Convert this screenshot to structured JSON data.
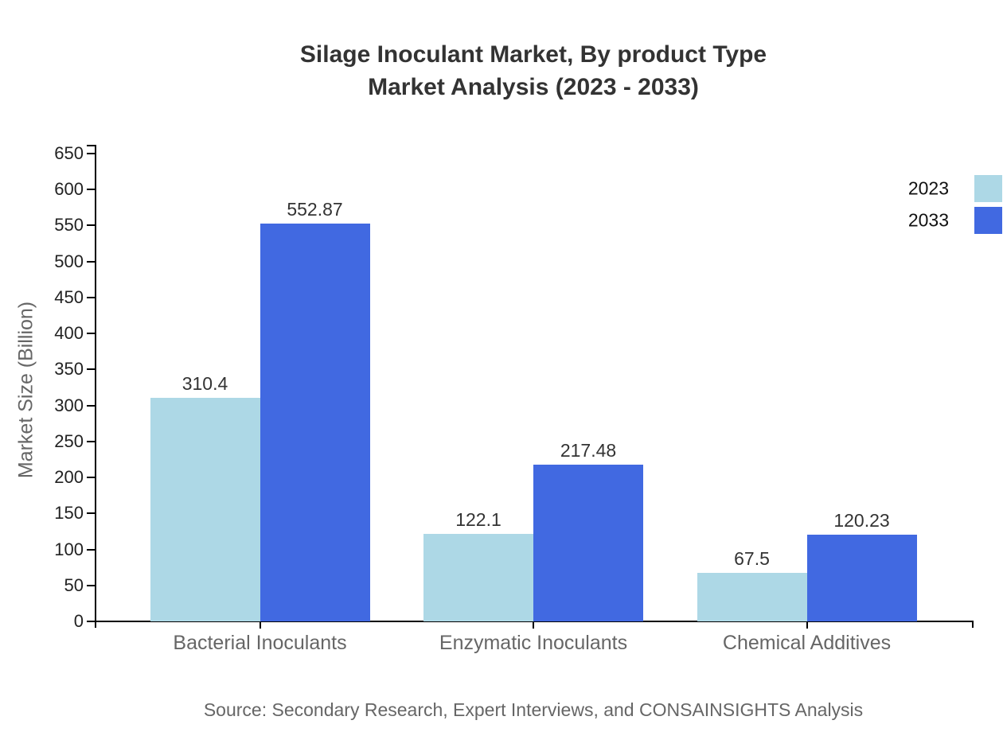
{
  "title": {
    "line1": "Silage Inoculant Market, By product Type",
    "line2": "Market Analysis (2023 - 2033)"
  },
  "source": "Source: Secondary Research, Expert Interviews, and CONSAINSIGHTS Analysis",
  "chart_data": {
    "type": "bar",
    "title": "Silage Inoculant Market, By product Type Market Analysis (2023 - 2033)",
    "categories": [
      "Bacterial Inoculants",
      "Enzymatic Inoculants",
      "Chemical Additives"
    ],
    "series": [
      {
        "name": "2023",
        "color": "#ADD8E6",
        "values": [
          310.4,
          122.1,
          67.5
        ]
      },
      {
        "name": "2033",
        "color": "#4169E1",
        "values": [
          552.87,
          217.48,
          120.23
        ]
      }
    ],
    "xlabel": "",
    "ylabel": "Market Size (Billion)",
    "ylim": [
      0,
      650
    ],
    "y_tick_step": 50,
    "grid": false,
    "legend_position": "top-right",
    "value_label_format": "plain",
    "colors": {
      "axis": "#000000",
      "title_text": "#333333",
      "tick_text": "#222222",
      "category_text": "#666666",
      "value_text": "#333333",
      "source_text": "#666666",
      "legend_text": "#111111"
    }
  }
}
